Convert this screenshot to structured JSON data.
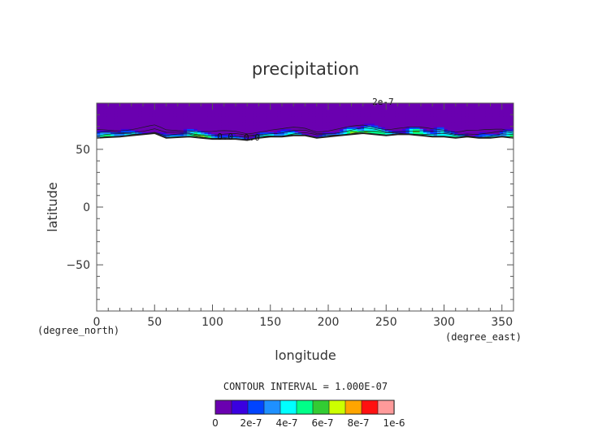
{
  "chart_data": {
    "type": "heatmap",
    "title": "precipitation",
    "xlabel": "longitude",
    "ylabel": "latitude",
    "x_unit": "(degree_east)",
    "y_unit": "(degree_north)",
    "xlim": [
      0,
      360
    ],
    "ylim": [
      -90,
      90
    ],
    "x_ticks": [
      0,
      50,
      100,
      150,
      200,
      250,
      300,
      350
    ],
    "x_tick_labels": [
      "0",
      "50",
      "100",
      "150",
      "200",
      "250",
      "300",
      "350"
    ],
    "y_ticks": [
      50,
      0,
      -50
    ],
    "y_tick_labels": [
      "50",
      "0",
      "−50"
    ],
    "grid": false,
    "contour_interval_text": "CONTOUR INTERVAL = 1.000E-07",
    "colorbar": {
      "placement": "bottom",
      "levels": [
        0,
        1e-07,
        2e-07,
        3e-07,
        4e-07,
        5e-07,
        6e-07,
        7e-07,
        8e-07,
        9e-07,
        1e-06
      ],
      "colors": [
        "#6a00b0",
        "#3a00e0",
        "#0044ff",
        "#1e90ff",
        "#00ffff",
        "#00ff88",
        "#33cc33",
        "#ccff00",
        "#ffa500",
        "#ff1010",
        "#ff9a9a"
      ],
      "labels": [
        "0",
        "2e-7",
        "4e-7",
        "6e-7",
        "8e-7",
        "1e-6"
      ]
    },
    "contour_labels": [
      "2e-7",
      "0.0",
      "0.0"
    ],
    "southern_boundary_lat": [
      [
        0,
        60
      ],
      [
        20,
        61
      ],
      [
        30,
        62
      ],
      [
        40,
        63
      ],
      [
        50,
        64
      ],
      [
        55,
        62
      ],
      [
        60,
        60
      ],
      [
        80,
        61
      ],
      [
        90,
        60
      ],
      [
        100,
        59
      ],
      [
        110,
        59
      ],
      [
        120,
        59
      ],
      [
        130,
        58
      ],
      [
        140,
        60
      ],
      [
        150,
        61
      ],
      [
        160,
        61
      ],
      [
        170,
        62
      ],
      [
        180,
        62
      ],
      [
        190,
        60
      ],
      [
        200,
        61
      ],
      [
        210,
        62
      ],
      [
        220,
        63
      ],
      [
        230,
        64
      ],
      [
        240,
        63
      ],
      [
        250,
        62
      ],
      [
        260,
        63
      ],
      [
        270,
        63
      ],
      [
        280,
        62
      ],
      [
        290,
        61
      ],
      [
        300,
        61
      ],
      [
        310,
        60
      ],
      [
        320,
        61
      ],
      [
        330,
        60
      ],
      [
        340,
        60
      ],
      [
        350,
        61
      ],
      [
        360,
        60
      ]
    ]
  }
}
